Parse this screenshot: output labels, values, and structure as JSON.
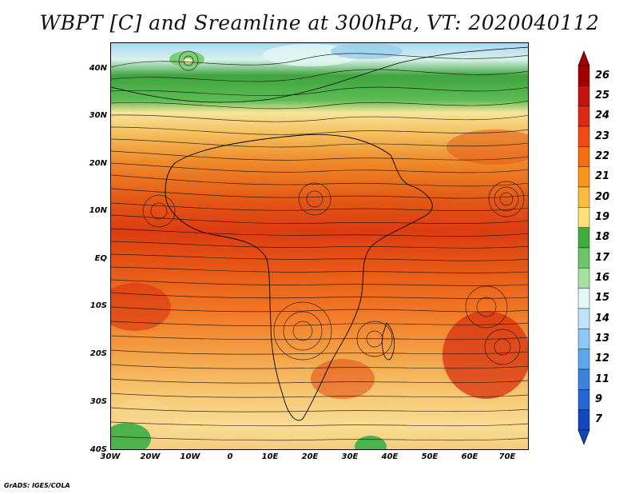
{
  "title": "WBPT [C] and Sreamline at 300hPa, VT: 2020040112",
  "credit": "GrADS: IGES/COLA",
  "lat_ticks": [
    "40N",
    "30N",
    "20N",
    "10N",
    "EQ",
    "10S",
    "20S",
    "30S",
    "40S"
  ],
  "lon_ticks": [
    "30W",
    "20W",
    "10W",
    "0",
    "10E",
    "20E",
    "30E",
    "40E",
    "50E",
    "60E",
    "70E"
  ],
  "colorbar": {
    "labels": [
      "26",
      "25",
      "24",
      "23",
      "22",
      "21",
      "20",
      "19",
      "18",
      "17",
      "16",
      "15",
      "14",
      "13",
      "12",
      "11",
      "9",
      "7"
    ],
    "colors": [
      "#a00000",
      "#c4140e",
      "#de2a14",
      "#f04a12",
      "#f46e12",
      "#f7971a",
      "#f9bb40",
      "#fde07a",
      "#3fae3f",
      "#6cc46c",
      "#a8e0a0",
      "#e4f8f4",
      "#bfe4fa",
      "#8ec8f4",
      "#5ca6ec",
      "#3a84e0",
      "#2466d6",
      "#1446c2"
    ]
  }
}
